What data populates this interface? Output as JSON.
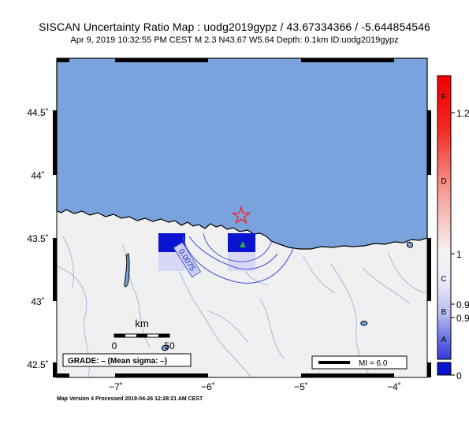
{
  "header": {
    "title": "SISCAN Uncertainty Ratio Map : uodg2019gypz / 43.67334366 / -5.644854546",
    "subtitle": "Apr  9, 2019 10:32:55 PM CEST   M 2.3   N43.67 W5.64   Depth: 0.1km   ID:uodg2019gypz"
  },
  "map": {
    "lat_labels": [
      "44.5˚",
      "44˚",
      "43.5˚",
      "43˚",
      "42.5˚"
    ],
    "lon_labels": [
      "−7˚",
      "−6˚",
      "−5˚",
      "−4˚"
    ],
    "contour_label": "0.0075",
    "scale_unit": "km",
    "scale_start": "0",
    "scale_end": "50",
    "grade_text": "GRADE: – (Mean sigma: –)",
    "mi_text": "MI = 6.0",
    "epicenter": {
      "lat": 43.67334366,
      "lon": -5.644854546
    },
    "colors": {
      "sea": "#7aa2dc",
      "land": "#f0f0f0",
      "cell": "#0a14d0",
      "star": "#e8303a",
      "station": "#22aa44"
    }
  },
  "colorbar": {
    "letters": [
      "F",
      "D",
      "C",
      "B",
      "A"
    ],
    "values": [
      "1.2",
      "1",
      "0.9",
      "0.9",
      "0"
    ]
  },
  "footer": {
    "text": "Map Version 4 Processed 2019-04-26 12:28:21 AM CEST"
  }
}
